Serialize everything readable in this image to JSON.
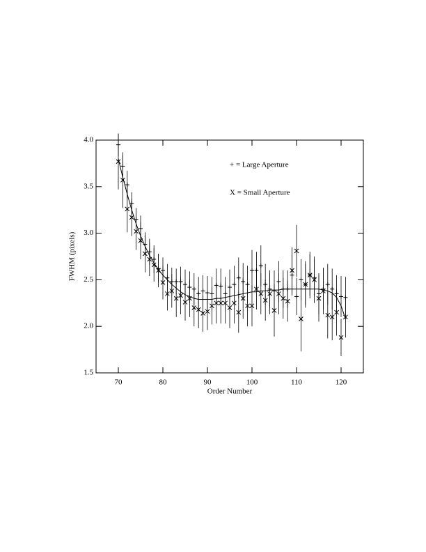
{
  "chart_data": {
    "type": "scatter",
    "xlabel": "Order Number",
    "ylabel": "FWHM (pixels)",
    "xlim": [
      65,
      125
    ],
    "ylim": [
      1.5,
      4.0
    ],
    "xticks": [
      70,
      80,
      90,
      100,
      110,
      120
    ],
    "yticks": [
      1.5,
      {
        "value": 2,
        "label": "2.0"
      },
      2.5,
      {
        "value": 3,
        "label": "3.0"
      },
      3.5,
      {
        "value": 4,
        "label": "4.0"
      }
    ],
    "x": [
      70,
      71,
      72,
      73,
      74,
      75,
      76,
      77,
      78,
      79,
      80,
      81,
      82,
      83,
      84,
      85,
      86,
      87,
      88,
      89,
      90,
      91,
      92,
      93,
      94,
      95,
      96,
      97,
      98,
      99,
      100,
      101,
      102,
      103,
      104,
      105,
      106,
      107,
      108,
      109,
      110,
      111,
      112,
      113,
      114,
      115,
      116,
      117,
      118,
      119,
      120,
      121
    ],
    "series": [
      {
        "name": "+ = Large Aperture",
        "marker": "plus",
        "color": "#000000",
        "values": [
          3.95,
          3.72,
          3.52,
          3.32,
          3.15,
          3.05,
          2.88,
          2.8,
          2.72,
          2.62,
          2.6,
          2.52,
          2.48,
          2.48,
          2.48,
          2.45,
          2.42,
          2.4,
          2.35,
          2.38,
          2.36,
          2.35,
          2.44,
          2.43,
          2.35,
          2.42,
          2.45,
          2.52,
          2.48,
          2.45,
          2.6,
          2.6,
          2.65,
          2.45,
          2.4,
          2.38,
          2.48,
          2.4,
          2.4,
          2.55,
          2.32,
          2.5,
          2.45,
          2.55,
          2.52,
          2.35,
          2.4,
          2.45,
          2.4,
          2.35,
          2.32,
          2.31
        ],
        "errors": [
          0.12,
          0.12,
          0.15,
          0.12,
          0.12,
          0.14,
          0.13,
          0.14,
          0.15,
          0.15,
          0.14,
          0.15,
          0.15,
          0.14,
          0.16,
          0.16,
          0.17,
          0.17,
          0.18,
          0.17,
          0.18,
          0.18,
          0.18,
          0.19,
          0.18,
          0.19,
          0.2,
          0.22,
          0.2,
          0.2,
          0.22,
          0.2,
          0.22,
          0.22,
          0.2,
          0.22,
          0.22,
          0.2,
          0.2,
          0.22,
          0.2,
          0.22,
          0.22,
          0.22,
          0.2,
          0.22,
          0.22,
          0.22,
          0.22,
          0.2,
          0.22,
          0.22
        ]
      },
      {
        "name": "X = Small Aperture",
        "marker": "cross",
        "color": "#000000",
        "values": [
          3.77,
          3.57,
          3.26,
          3.17,
          3.02,
          2.92,
          2.78,
          2.72,
          2.66,
          2.6,
          2.47,
          2.35,
          2.38,
          2.3,
          2.33,
          2.26,
          2.3,
          2.2,
          2.18,
          2.14,
          2.16,
          2.22,
          2.25,
          2.25,
          2.25,
          2.2,
          2.25,
          2.15,
          2.3,
          2.22,
          2.22,
          2.4,
          2.35,
          2.28,
          2.35,
          2.17,
          2.35,
          2.3,
          2.27,
          2.6,
          2.81,
          2.08,
          2.45,
          2.55,
          2.5,
          2.3,
          2.38,
          2.12,
          2.1,
          2.15,
          1.88,
          2.1
        ],
        "errors": [
          0.3,
          0.3,
          0.25,
          0.2,
          0.2,
          0.2,
          0.2,
          0.18,
          0.18,
          0.18,
          0.18,
          0.18,
          0.18,
          0.2,
          0.2,
          0.2,
          0.2,
          0.2,
          0.2,
          0.2,
          0.2,
          0.2,
          0.22,
          0.22,
          0.22,
          0.22,
          0.22,
          0.22,
          0.22,
          0.22,
          0.22,
          0.22,
          0.22,
          0.22,
          0.22,
          0.28,
          0.22,
          0.22,
          0.22,
          0.25,
          0.28,
          0.35,
          0.25,
          0.25,
          0.25,
          0.25,
          0.25,
          0.25,
          0.25,
          0.25,
          0.2,
          0.22
        ]
      }
    ],
    "fit": {
      "color": "#000000",
      "values": [
        3.8,
        3.6,
        3.42,
        3.25,
        3.1,
        2.97,
        2.86,
        2.76,
        2.68,
        2.61,
        2.55,
        2.5,
        2.45,
        2.41,
        2.37,
        2.34,
        2.32,
        2.3,
        2.29,
        2.29,
        2.29,
        2.29,
        2.3,
        2.3,
        2.31,
        2.32,
        2.33,
        2.34,
        2.35,
        2.36,
        2.37,
        2.37,
        2.38,
        2.38,
        2.39,
        2.39,
        2.39,
        2.4,
        2.4,
        2.4,
        2.4,
        2.4,
        2.4,
        2.4,
        2.4,
        2.4,
        2.39,
        2.38,
        2.36,
        2.31,
        2.22,
        2.08
      ]
    },
    "legend_position": "top-right"
  }
}
